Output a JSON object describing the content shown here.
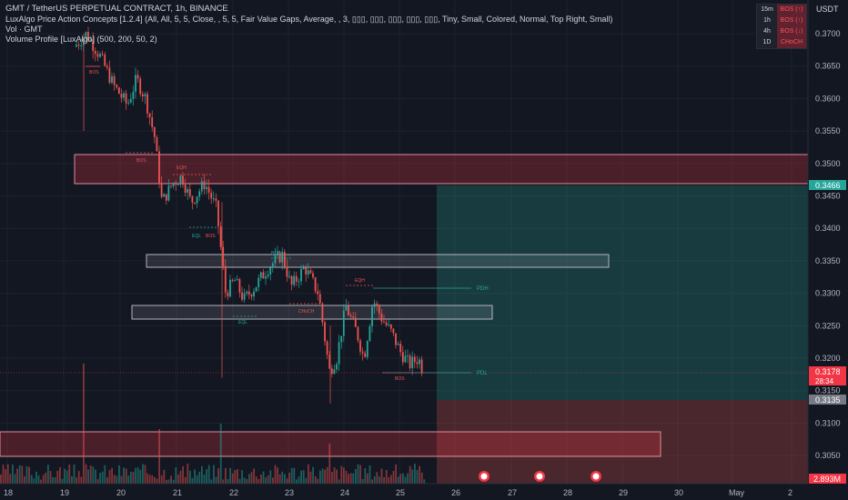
{
  "header": {
    "title": "GMT / TetherUS PERPETUAL CONTRACT, 1h, BINANCE",
    "indicator1": "LuxAlgo Price Action Concepts [1.2.4] (All, All, 5, 5, Close, , 5, 5, Fair Value Gaps, Average, , 3, ▯▯▯, ▯▯▯, ▯▯▯, ▯▯▯, ▯▯▯, Tiny, Small, Colored, Normal, Top Right, Small)",
    "indicator2": "Vol · GMT",
    "indicator3": "Volume Profile [LuxAlgo] (500, 200, 50, 2)"
  },
  "currency": "USDT",
  "mtf_table": [
    {
      "tf": "15m",
      "status": "BOS (↑)"
    },
    {
      "tf": "1h",
      "status": "BOS (↑)"
    },
    {
      "tf": "4h",
      "status": "BOS (↓)"
    },
    {
      "tf": "1D",
      "status": "CHoCH"
    }
  ],
  "price_axis": {
    "ticks": [
      "0.3700",
      "0.3650",
      "0.3600",
      "0.3550",
      "0.3500",
      "0.3450",
      "0.3400",
      "0.3350",
      "0.3300",
      "0.3250",
      "0.3200",
      "0.3150",
      "0.3100",
      "0.3050"
    ],
    "tag_take_profit": "0.3466",
    "tag_current": "0.3178",
    "tag_countdown": "28:34",
    "tag_stop": "0.3135",
    "tag_volume": "2.893M"
  },
  "time_axis": [
    "18",
    "19",
    "20",
    "21",
    "22",
    "23",
    "24",
    "25",
    "26",
    "27",
    "28",
    "29",
    "30",
    "May",
    "2"
  ],
  "annotations": {
    "bos": "BOS",
    "eqh": "EQH",
    "eql": "EQL",
    "choch": "CHoCH",
    "pdh": "PDH",
    "pdl": "PDL"
  },
  "colors": {
    "background": "#131722",
    "bull": "#26a69a",
    "bear": "#ef5350",
    "zone_red_fill": "rgba(242,54,69,0.25)",
    "zone_grey_fill": "rgba(160,160,170,0.18)",
    "tp_fill": "rgba(38,166,154,0.25)",
    "sl_fill": "rgba(239,83,80,0.25)"
  }
}
